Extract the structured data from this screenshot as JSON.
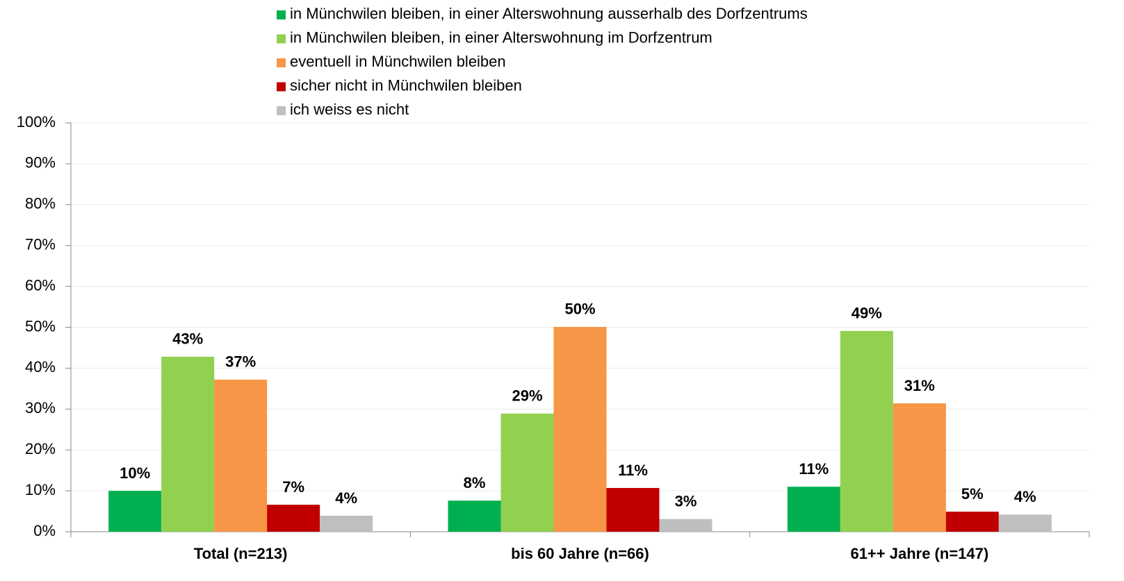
{
  "chart_data": {
    "type": "bar",
    "categories": [
      "Total (n=213)",
      "bis 60 Jahre (n=66)",
      "61++ Jahre (n=147)"
    ],
    "series": [
      {
        "name": "in Münchwilen bleiben, in einer Alterswohnung ausserhalb des Dorfzentrums",
        "color": "#00b050",
        "values": [
          10.0,
          7.6,
          11.0
        ],
        "value_labels": [
          "10%",
          "8%",
          "11%"
        ]
      },
      {
        "name": "in Münchwilen bleiben, in einer Alterswohnung im Dorfzentrum",
        "color": "#92d050",
        "values": [
          42.8,
          28.9,
          49.1
        ],
        "value_labels": [
          "43%",
          "29%",
          "49%"
        ]
      },
      {
        "name": "eventuell in Münchwilen bleiben",
        "color": "#f79646",
        "values": [
          37.2,
          50.1,
          31.4
        ],
        "value_labels": [
          "37%",
          "50%",
          "31%"
        ]
      },
      {
        "name": "sicher nicht in Münchwilen bleiben",
        "color": "#c00000",
        "values": [
          6.6,
          10.7,
          4.9
        ],
        "value_labels": [
          "7%",
          "11%",
          "5%"
        ]
      },
      {
        "name": "ich weiss es nicht",
        "color": "#bfbfbf",
        "values": [
          3.9,
          3.1,
          4.2
        ],
        "value_labels": [
          "4%",
          "3%",
          "4%"
        ]
      }
    ],
    "ylim": [
      0,
      100
    ],
    "yticks": [
      {
        "value": 0,
        "label": "0%"
      },
      {
        "value": 10,
        "label": "10%"
      },
      {
        "value": 20,
        "label": "20%"
      },
      {
        "value": 30,
        "label": "30%"
      },
      {
        "value": 40,
        "label": "40%"
      },
      {
        "value": 50,
        "label": "50%"
      },
      {
        "value": 60,
        "label": "60%"
      },
      {
        "value": 70,
        "label": "70%"
      },
      {
        "value": 80,
        "label": "80%"
      },
      {
        "value": 90,
        "label": "90%"
      },
      {
        "value": 100,
        "label": "100%"
      }
    ],
    "grid": true
  }
}
